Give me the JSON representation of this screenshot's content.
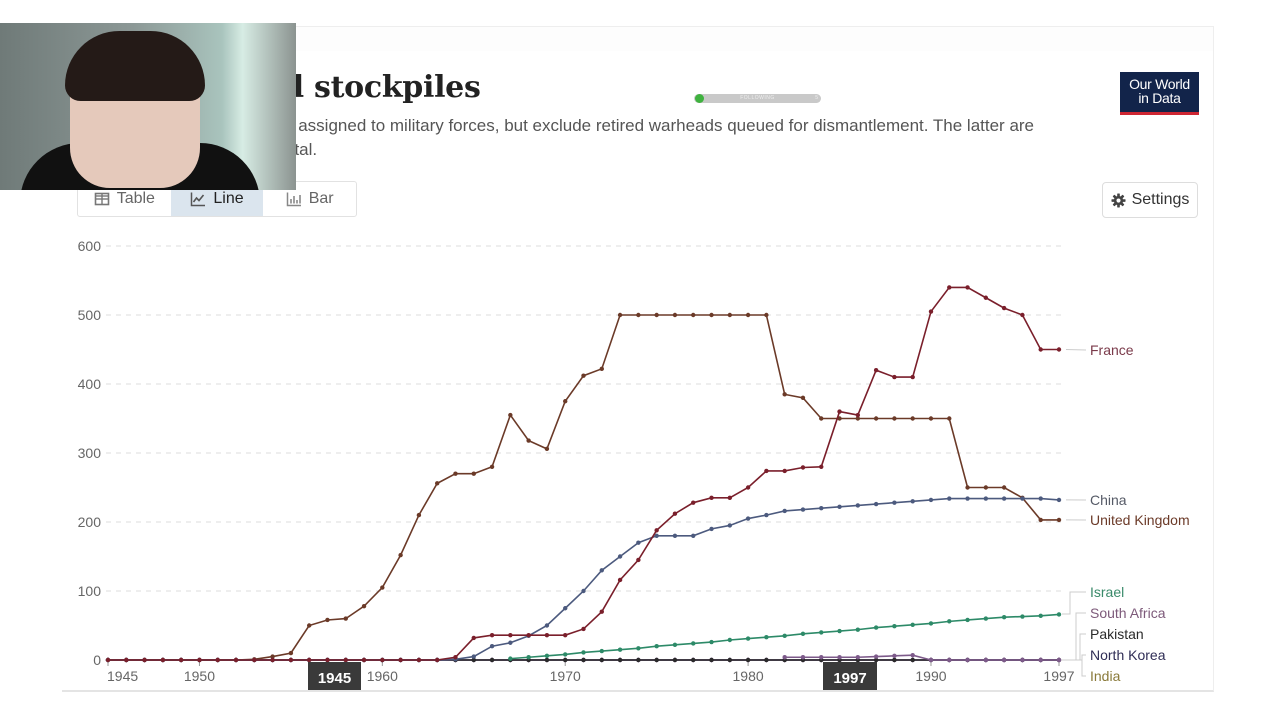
{
  "header": {
    "title_visible": "ear warhead stockpiles",
    "subtitle_line1": "s assigned to military forces, but exclude retired warheads queued for dismantlement. The latter are",
    "subtitle_line2": "otal.",
    "follow_widget": {
      "label": "FOLLOWING",
      "count": "5"
    },
    "logo_line1": "Our World",
    "logo_line2": "in Data"
  },
  "tabs": [
    {
      "label": "Table",
      "icon": "table-icon",
      "active": false
    },
    {
      "label": "Line",
      "icon": "line-chart-icon",
      "active": true
    },
    {
      "label": "Bar",
      "icon": "bar-chart-icon",
      "active": false
    }
  ],
  "settings_label": "Settings",
  "timeline": {
    "start_label": "1945",
    "end_label": "1997"
  },
  "chart_data": {
    "type": "line",
    "title": "Nuclear warhead stockpiles",
    "xlabel": "",
    "ylabel": "",
    "xlim": [
      1945,
      1997
    ],
    "ylim": [
      0,
      600
    ],
    "yticks": [
      0,
      100,
      200,
      300,
      400,
      500,
      600
    ],
    "xticks": [
      1945,
      1950,
      1960,
      1970,
      1980,
      1990,
      1997
    ],
    "grid": true,
    "legend_placement": "right-inline",
    "x": [
      1945,
      1946,
      1947,
      1948,
      1949,
      1950,
      1951,
      1952,
      1953,
      1954,
      1955,
      1956,
      1957,
      1958,
      1959,
      1960,
      1961,
      1962,
      1963,
      1964,
      1965,
      1966,
      1967,
      1968,
      1969,
      1970,
      1971,
      1972,
      1973,
      1974,
      1975,
      1976,
      1977,
      1978,
      1979,
      1980,
      1981,
      1982,
      1983,
      1984,
      1985,
      1986,
      1987,
      1988,
      1989,
      1990,
      1991,
      1992,
      1993,
      1994,
      1995,
      1996,
      1997
    ],
    "series": [
      {
        "name": "France",
        "color": "#7a1f2b",
        "values": [
          0,
          0,
          0,
          0,
          0,
          0,
          0,
          0,
          0,
          0,
          0,
          0,
          0,
          0,
          0,
          0,
          0,
          0,
          0,
          4,
          32,
          36,
          36,
          36,
          36,
          36,
          45,
          70,
          116,
          145,
          188,
          212,
          228,
          235,
          235,
          250,
          274,
          274,
          279,
          280,
          360,
          355,
          420,
          410,
          410,
          505,
          540,
          540,
          525,
          510,
          500,
          450,
          450
        ]
      },
      {
        "name": "China",
        "color": "#4c5a7e",
        "values": [
          0,
          0,
          0,
          0,
          0,
          0,
          0,
          0,
          0,
          0,
          0,
          0,
          0,
          0,
          0,
          0,
          0,
          0,
          0,
          1,
          5,
          20,
          25,
          35,
          50,
          75,
          100,
          130,
          150,
          170,
          180,
          180,
          180,
          190,
          195,
          205,
          210,
          216,
          218,
          220,
          222,
          224,
          226,
          228,
          230,
          232,
          234,
          234,
          234,
          234,
          234,
          234,
          232
        ]
      },
      {
        "name": "United Kingdom",
        "color": "#6b3a28",
        "values": [
          0,
          0,
          0,
          0,
          0,
          0,
          0,
          0,
          1,
          5,
          10,
          50,
          58,
          60,
          78,
          105,
          152,
          210,
          256,
          270,
          270,
          280,
          355,
          318,
          306,
          375,
          412,
          422,
          500,
          500,
          500,
          500,
          500,
          500,
          500,
          500,
          500,
          385,
          380,
          350,
          350,
          350,
          350,
          350,
          350,
          350,
          350,
          250,
          250,
          250,
          235,
          203,
          203
        ]
      },
      {
        "name": "Israel",
        "color": "#2d8a68",
        "values": [
          null,
          null,
          null,
          null,
          null,
          null,
          null,
          null,
          null,
          null,
          null,
          null,
          null,
          null,
          null,
          null,
          null,
          null,
          null,
          null,
          null,
          null,
          2,
          4,
          6,
          8,
          11,
          13,
          15,
          17,
          20,
          22,
          24,
          26,
          29,
          31,
          33,
          35,
          38,
          40,
          42,
          44,
          47,
          49,
          51,
          53,
          56,
          58,
          60,
          62,
          63,
          64,
          66
        ]
      },
      {
        "name": "South Africa",
        "color": "#7d5a8a",
        "values": [
          null,
          null,
          null,
          null,
          null,
          null,
          null,
          null,
          null,
          null,
          null,
          null,
          null,
          null,
          null,
          null,
          null,
          null,
          null,
          null,
          null,
          null,
          null,
          null,
          null,
          null,
          null,
          null,
          null,
          null,
          null,
          null,
          null,
          null,
          null,
          null,
          null,
          4,
          4,
          4,
          4,
          4,
          5,
          6,
          7,
          0,
          0,
          0,
          0,
          0,
          0,
          0,
          0
        ]
      },
      {
        "name": "Pakistan",
        "color": "#2a2a2a",
        "values": [
          0,
          0,
          0,
          0,
          0,
          0,
          0,
          0,
          0,
          0,
          0,
          0,
          0,
          0,
          0,
          0,
          0,
          0,
          0,
          0,
          0,
          0,
          0,
          0,
          0,
          0,
          0,
          0,
          0,
          0,
          0,
          0,
          0,
          0,
          0,
          0,
          0,
          0,
          0,
          0,
          0,
          0,
          0,
          0,
          0,
          0,
          0,
          0,
          0,
          0,
          0,
          0,
          0
        ]
      },
      {
        "name": "North Korea",
        "color": "#3a2d5a",
        "values": [
          0,
          0,
          0,
          0,
          0,
          0,
          0,
          0,
          0,
          0,
          0,
          0,
          0,
          0,
          0,
          0,
          0,
          0,
          0,
          0,
          0,
          0,
          0,
          0,
          0,
          0,
          0,
          0,
          0,
          0,
          0,
          0,
          0,
          0,
          0,
          0,
          0,
          0,
          0,
          0,
          0,
          0,
          0,
          0,
          0,
          0,
          0,
          0,
          0,
          0,
          0,
          0,
          0
        ]
      },
      {
        "name": "India",
        "color": "#a04a9a",
        "values": [
          0,
          0,
          0,
          0,
          0,
          0,
          0,
          0,
          0,
          0,
          0,
          0,
          0,
          0,
          0,
          0,
          0,
          0,
          0,
          0,
          0,
          0,
          0,
          0,
          0,
          0,
          0,
          0,
          0,
          0,
          0,
          0,
          0,
          0,
          0,
          0,
          0,
          0,
          0,
          0,
          0,
          0,
          0,
          0,
          0,
          0,
          0,
          0,
          0,
          0,
          0,
          0,
          0
        ]
      }
    ],
    "legend": [
      {
        "name": "France",
        "color": "#7a3a4a"
      },
      {
        "name": "China",
        "color": "#555a66"
      },
      {
        "name": "United Kingdom",
        "color": "#6b3a28"
      },
      {
        "name": "Israel",
        "color": "#3a8a6a"
      },
      {
        "name": "South Africa",
        "color": "#7d5a7a"
      },
      {
        "name": "Pakistan",
        "color": "#2a2a2a"
      },
      {
        "name": "North Korea",
        "color": "#2f2d55"
      },
      {
        "name": "India",
        "color": "#8a7a3a"
      }
    ]
  }
}
